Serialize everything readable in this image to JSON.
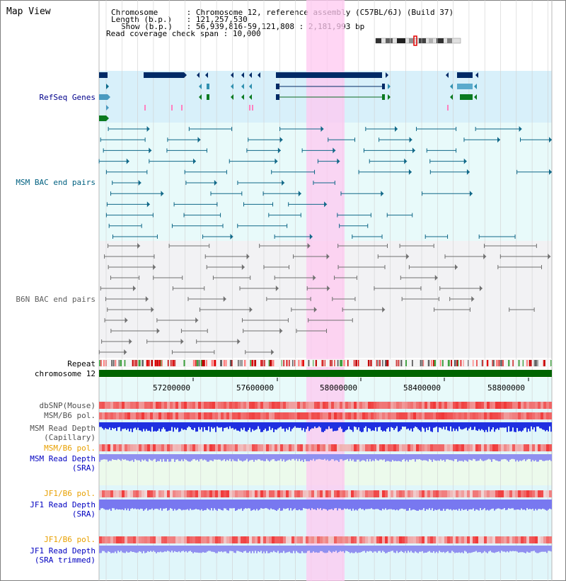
{
  "header": {
    "title": "Map View",
    "chromosome_key": "Chromosome",
    "chromosome_value": "Chromosome 12, reference assembly (C57BL/6J) (Build 37)",
    "length_key": "Length (b.p.)",
    "length_value": "121,257,530",
    "show_key": "Show (b.p.)",
    "show_value": "56,939,816-59,121,808 : 2,181,993 bp",
    "coverage_key": "Read coverage check span",
    "coverage_value": "10,000"
  },
  "tracks": {
    "refseq": "RefSeq Genes",
    "msm_bac": "MSM BAC end pairs",
    "b6n_bac": "B6N BAC end pairs",
    "repeat": "Repeat",
    "chromosome": "chromosome 12",
    "dbsnp": "dbSNP(Mouse)",
    "msm_b6_pol_1": "MSM/B6 pol.",
    "msm_read_depth_cap_1": "MSM Read Depth",
    "msm_read_depth_cap_2": "(Capillary)",
    "msm_b6_pol_2": "MSM/B6 pol.",
    "msm_read_depth_sra_1": "MSM Read Depth",
    "msm_read_depth_sra_2": "(SRA)",
    "jf1_b6_pol_1": "JF1/B6 pol.",
    "jf1_read_depth_sra_1": "JF1 Read Depth",
    "jf1_read_depth_sra_2": "(SRA)",
    "jf1_b6_pol_2": "JF1/B6 pol.",
    "jf1_read_depth_trim_1": "JF1 Read Depth",
    "jf1_read_depth_trim_2": "(SRA trimmed)"
  },
  "axis": {
    "ticks": [
      "57200000",
      "57600000",
      "58000000",
      "58400000",
      "58800000"
    ]
  },
  "colors": {
    "refseq_label": "#00008b",
    "msm_bac_label": "#006080",
    "b6n_bac_label": "#606060",
    "orange_label": "#e8a000",
    "blue_label": "#0000c0",
    "highlight": "#ffc8f0",
    "chromosome_bar": "#006400"
  }
}
